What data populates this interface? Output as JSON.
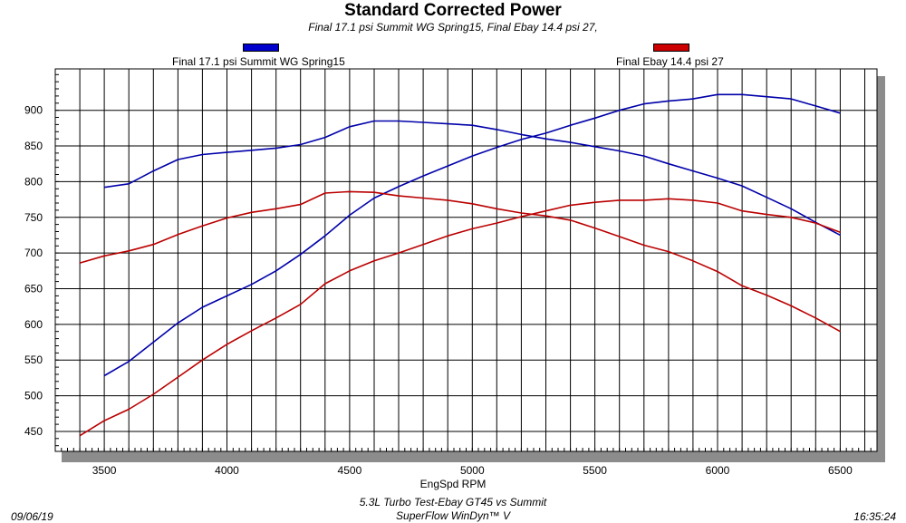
{
  "chart_data": {
    "type": "line",
    "title": "Standard Corrected Power",
    "subtitle": "Final 17.1 psi Summit WG Spring15, Final Ebay 14.4 psi 27,",
    "xlabel": "EngSpd RPM",
    "ylabel": "",
    "xlim": [
      3300,
      6650
    ],
    "ylim": [
      422,
      958
    ],
    "xticks": [
      3500,
      4000,
      4500,
      5000,
      5500,
      6000,
      6500
    ],
    "yticks": [
      450,
      500,
      550,
      600,
      650,
      700,
      750,
      800,
      850,
      900
    ],
    "grid": true,
    "legend_position": "top",
    "series": [
      {
        "name": "Final 17.1 psi Summit WG Spring15",
        "metric": "power",
        "color": "#0000aa",
        "x": [
          3500,
          3600,
          3700,
          3800,
          3900,
          4000,
          4100,
          4200,
          4300,
          4400,
          4500,
          4600,
          4700,
          4800,
          4900,
          5000,
          5100,
          5200,
          5300,
          5400,
          5500,
          5600,
          5700,
          5800,
          5900,
          6000,
          6100,
          6200,
          6300,
          6400,
          6500
        ],
        "y": [
          528,
          548,
          575,
          602,
          624,
          640,
          656,
          675,
          698,
          724,
          753,
          777,
          793,
          808,
          822,
          836,
          848,
          859,
          868,
          879,
          889,
          900,
          909,
          913,
          916,
          922,
          922,
          919,
          916,
          906,
          896
        ]
      },
      {
        "name": "Final 17.1 psi Summit WG Spring15",
        "metric": "torque",
        "color": "#0000aa",
        "x": [
          3500,
          3600,
          3700,
          3800,
          3900,
          4000,
          4100,
          4200,
          4300,
          4400,
          4500,
          4600,
          4700,
          4800,
          4900,
          5000,
          5100,
          5200,
          5300,
          5400,
          5500,
          5600,
          5700,
          5800,
          5900,
          6000,
          6100,
          6200,
          6300,
          6400,
          6500
        ],
        "y": [
          792,
          797,
          815,
          831,
          838,
          841,
          844,
          847,
          852,
          862,
          877,
          885,
          885,
          883,
          881,
          879,
          873,
          866,
          860,
          855,
          849,
          843,
          836,
          825,
          815,
          805,
          794,
          778,
          762,
          743,
          725
        ]
      },
      {
        "name": "Final Ebay 14.4 psi 27",
        "metric": "power",
        "color": "#bb0000",
        "x": [
          3400,
          3500,
          3600,
          3700,
          3800,
          3900,
          4000,
          4100,
          4200,
          4300,
          4400,
          4500,
          4600,
          4700,
          4800,
          4900,
          5000,
          5100,
          5200,
          5300,
          5400,
          5500,
          5600,
          5700,
          5800,
          5900,
          6000,
          6100,
          6200,
          6300,
          6400,
          6500
        ],
        "y": [
          444,
          465,
          481,
          502,
          526,
          550,
          572,
          591,
          609,
          628,
          657,
          675,
          689,
          700,
          712,
          724,
          734,
          742,
          751,
          759,
          767,
          771,
          774,
          774,
          776,
          774,
          770,
          759,
          754,
          750,
          742,
          729
        ]
      },
      {
        "name": "Final Ebay 14.4 psi 27",
        "metric": "torque",
        "color": "#bb0000",
        "x": [
          3400,
          3500,
          3600,
          3700,
          3800,
          3900,
          4000,
          4100,
          4200,
          4300,
          4400,
          4500,
          4600,
          4700,
          4800,
          4900,
          5000,
          5100,
          5200,
          5300,
          5400,
          5500,
          5600,
          5700,
          5800,
          5900,
          6000,
          6100,
          6200,
          6300,
          6400,
          6500
        ],
        "y": [
          686,
          696,
          703,
          712,
          726,
          738,
          749,
          757,
          762,
          768,
          784,
          786,
          785,
          780,
          777,
          774,
          769,
          762,
          756,
          752,
          746,
          735,
          723,
          711,
          702,
          689,
          674,
          654,
          641,
          626,
          609,
          590
        ]
      }
    ]
  },
  "legend": [
    {
      "label": "Final 17.1 psi Summit WG Spring15",
      "color": "#0000cc"
    },
    {
      "label": "Final Ebay 14.4 psi 27",
      "color": "#cc0000"
    }
  ],
  "footer": {
    "date": "09/06/19",
    "time": "16:35:24",
    "test_name": "5.3L Turbo Test-Ebay GT45 vs Summit",
    "software": "SuperFlow WinDyn™ V"
  }
}
